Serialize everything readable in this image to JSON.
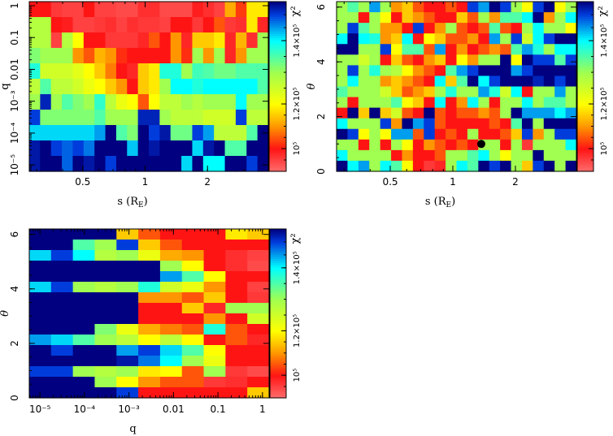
{
  "chart_data": [
    {
      "type": "heatmap",
      "title": "",
      "xlabel": {
        "main": "s (R",
        "sub": "E",
        "end": ")"
      },
      "ylabel": "q",
      "x_scale": "log",
      "y_scale": "log",
      "x_range": [
        0.276,
        3.93
      ],
      "y_range": [
        6.3e-06,
        1.34
      ],
      "x_ticks": [
        {
          "value": 0.5,
          "label": "0.5"
        },
        {
          "value": 1,
          "label": "1"
        },
        {
          "value": 2,
          "label": "2"
        }
      ],
      "y_ticks": [
        {
          "value": 1,
          "label": "1"
        },
        {
          "value": 0.1,
          "label": "0.1"
        },
        {
          "value": 0.01,
          "label": "0.01"
        },
        {
          "value": 0.001,
          "label": "10⁻³"
        },
        {
          "value": 0.0001,
          "label": "10⁻⁴"
        },
        {
          "value": 1e-05,
          "label": "10⁻⁵"
        }
      ],
      "colorbar": {
        "label": "χ²",
        "ticks": [
          {
            "value": 1.0,
            "label": "10⁵"
          },
          {
            "value": 1.2,
            "label": "1.2×10⁵"
          },
          {
            "value": 1.4,
            "label": "1.4×10⁵"
          }
        ]
      },
      "value_units": "chi2 in units of 1e5",
      "grid_rows_top_to_bottom": [
        [
          1.0,
          1.0,
          0.96,
          0.95,
          0.95,
          1.0,
          0.95,
          0.95,
          0.94,
          0.94,
          0.97,
          0.97,
          0.94,
          0.94,
          0.94,
          0.99,
          0.97,
          0.95,
          1.12,
          1.03,
          1.18,
          1.18
        ],
        [
          1.28,
          1.28,
          1.0,
          0.99,
          0.95,
          0.95,
          0.96,
          0.97,
          0.95,
          0.97,
          0.96,
          0.96,
          0.95,
          1.0,
          1.0,
          0.96,
          1.0,
          1.05,
          0.96,
          0.97,
          1.18,
          0.98
        ],
        [
          1.28,
          1.28,
          0.95,
          1.28,
          1.2,
          1.0,
          1.0,
          0.96,
          0.96,
          0.96,
          0.98,
          1.05,
          1.0,
          1.1,
          0.98,
          1.15,
          1.15,
          1.18,
          0.98,
          1.13,
          0.97,
          1.3
        ],
        [
          1.32,
          1.3,
          1.3,
          1.3,
          1.1,
          1.05,
          1.13,
          1.1,
          1.02,
          1.0,
          1.0,
          1.0,
          1.0,
          1.1,
          1.02,
          1.3,
          1.1,
          1.3,
          0.98,
          1.1,
          1.3,
          1.3
        ],
        [
          1.38,
          1.25,
          1.25,
          1.25,
          1.23,
          1.2,
          1.15,
          1.08,
          1.0,
          0.98,
          1.15,
          1.18,
          1.38,
          1.38,
          1.3,
          1.36,
          1.35,
          1.33,
          1.33,
          1.35,
          1.35,
          1.35
        ],
        [
          1.27,
          1.35,
          1.27,
          1.27,
          1.25,
          1.22,
          1.2,
          1.15,
          1.1,
          1.0,
          1.15,
          1.18,
          1.3,
          1.4,
          1.4,
          1.38,
          1.4,
          1.4,
          1.4,
          1.4,
          1.4,
          1.35
        ],
        [
          1.3,
          1.52,
          1.3,
          1.35,
          1.32,
          1.3,
          1.37,
          1.27,
          1.22,
          1.2,
          1.05,
          1.2,
          1.27,
          1.27,
          1.3,
          1.28,
          1.3,
          1.3,
          1.3,
          1.4,
          1.3,
          1.3
        ],
        [
          1.5,
          1.32,
          1.32,
          1.32,
          1.32,
          1.32,
          1.35,
          1.3,
          1.3,
          1.3,
          1.52,
          1.52,
          1.3,
          1.27,
          1.27,
          1.27,
          1.25,
          1.25,
          1.25,
          1.5,
          1.27,
          1.27
        ],
        [
          1.42,
          1.42,
          1.42,
          1.42,
          1.42,
          1.42,
          1.45,
          1.55,
          1.35,
          1.32,
          1.55,
          1.5,
          1.53,
          1.33,
          1.33,
          1.5,
          1.45,
          1.27,
          1.27,
          1.27,
          1.35,
          1.55
        ],
        [
          1.53,
          1.55,
          1.5,
          1.48,
          1.5,
          1.47,
          1.55,
          1.55,
          1.55,
          1.43,
          1.55,
          1.53,
          1.55,
          1.55,
          1.55,
          1.42,
          1.53,
          1.55,
          1.35,
          1.35,
          1.55,
          1.55
        ],
        [
          1.53,
          1.55,
          1.55,
          1.48,
          1.55,
          1.53,
          1.55,
          1.5,
          1.55,
          1.55,
          1.55,
          1.55,
          1.55,
          1.55,
          1.42,
          1.55,
          1.4,
          1.4,
          1.55,
          1.55,
          1.5,
          1.55
        ]
      ]
    },
    {
      "type": "heatmap",
      "title": "",
      "xlabel": {
        "main": "s (R",
        "sub": "E",
        "end": ")"
      },
      "ylabel": "θ",
      "x_scale": "log",
      "y_scale": "linear",
      "x_range": [
        0.276,
        3.93
      ],
      "y_range": [
        0,
        6.2
      ],
      "x_ticks": [
        {
          "value": 0.5,
          "label": "0.5"
        },
        {
          "value": 1,
          "label": "1"
        },
        {
          "value": 2,
          "label": "2"
        }
      ],
      "y_ticks": [
        {
          "value": 0,
          "label": "0"
        },
        {
          "value": 2,
          "label": "2"
        },
        {
          "value": 4,
          "label": "4"
        },
        {
          "value": 6,
          "label": "6"
        }
      ],
      "colorbar": {
        "label": "χ²",
        "ticks": [
          {
            "value": 1.0,
            "label": "10⁵"
          },
          {
            "value": 1.2,
            "label": "1.2×10⁵"
          },
          {
            "value": 1.4,
            "label": "1.4×10⁵"
          }
        ]
      },
      "marker": {
        "s": 1.37,
        "theta": 1.0,
        "color": "#000000"
      },
      "value_units": "chi2 in units of 1e5",
      "grid_rows_top_to_bottom": [
        [
          1.3,
          1.35,
          1.3,
          1.45,
          1.3,
          1.1,
          1.15,
          1.05,
          1.0,
          1.0,
          1.05,
          1.0,
          1.5,
          1.45,
          1.55,
          1.5,
          1.3,
          1.2,
          1.5,
          1.55,
          1.2,
          1.3
        ],
        [
          1.3,
          1.3,
          1.0,
          1.3,
          1.2,
          1.0,
          1.15,
          1.1,
          1.05,
          1.0,
          1.0,
          1.15,
          1.05,
          1.3,
          1.1,
          1.35,
          1.35,
          1.4,
          1.55,
          1.1,
          1.3,
          1.4
        ],
        [
          1.3,
          1.5,
          1.35,
          1.3,
          1.1,
          1.1,
          1.0,
          1.5,
          1.0,
          1.1,
          1.3,
          1.05,
          1.0,
          1.05,
          1.35,
          1.05,
          1.0,
          1.3,
          1.4,
          1.3,
          1.3,
          1.2
        ],
        [
          1.4,
          1.55,
          1.4,
          1.38,
          1.1,
          1.15,
          1.4,
          1.0,
          1.2,
          1.15,
          1.05,
          1.05,
          1.1,
          1.0,
          1.45,
          1.3,
          1.5,
          1.25,
          1.4,
          1.5,
          1.55,
          1.55
        ],
        [
          1.55,
          1.55,
          1.3,
          1.3,
          1.5,
          1.2,
          1.35,
          1.35,
          1.05,
          1.45,
          1.0,
          1.1,
          1.0,
          1.05,
          1.1,
          1.05,
          1.35,
          1.45,
          1.38,
          1.3,
          1.4,
          1.4
        ],
        [
          1.3,
          1.3,
          1.25,
          1.3,
          1.0,
          1.15,
          1.05,
          1.0,
          1.1,
          1.15,
          1.0,
          1.2,
          1.1,
          1.3,
          1.3,
          1.55,
          1.2,
          1.55,
          1.5,
          1.5,
          1.35,
          1.5
        ],
        [
          1.3,
          1.5,
          1.3,
          1.38,
          1.3,
          1.28,
          1.2,
          1.1,
          1.05,
          1.0,
          1.35,
          1.45,
          1.5,
          1.55,
          1.55,
          1.55,
          1.45,
          1.5,
          1.55,
          1.55,
          1.55,
          1.55
        ],
        [
          1.3,
          1.4,
          1.3,
          1.3,
          1.1,
          1.15,
          1.1,
          1.05,
          1.0,
          1.4,
          1.15,
          1.35,
          1.55,
          1.4,
          1.5,
          1.55,
          1.55,
          1.55,
          1.52,
          1.55,
          1.5,
          1.55
        ],
        [
          1.35,
          1.3,
          1.3,
          1.3,
          1.25,
          1.15,
          1.05,
          1.1,
          1.15,
          1.3,
          1.38,
          1.3,
          1.3,
          1.45,
          1.38,
          1.25,
          1.4,
          1.0,
          1.3,
          1.3,
          1.45,
          1.3
        ],
        [
          1.3,
          1.0,
          1.3,
          1.3,
          1.3,
          1.35,
          1.2,
          1.15,
          1.0,
          1.4,
          1.0,
          1.1,
          1.4,
          1.3,
          1.0,
          1.3,
          1.3,
          1.4,
          1.3,
          1.35,
          1.35,
          1.3
        ],
        [
          1.0,
          1.55,
          1.15,
          1.55,
          1.15,
          1.25,
          1.05,
          1.0,
          1.55,
          1.05,
          1.0,
          1.05,
          1.05,
          1.1,
          1.05,
          1.3,
          1.55,
          1.45,
          1.45,
          1.45,
          1.4,
          1.45
        ],
        [
          1.4,
          1.3,
          1.3,
          1.3,
          1.5,
          1.1,
          1.55,
          1.45,
          1.5,
          1.05,
          1.0,
          1.0,
          1.0,
          1.0,
          1.05,
          1.0,
          1.35,
          1.55,
          1.3,
          1.55,
          1.55,
          1.55
        ],
        [
          1.55,
          1.5,
          1.2,
          1.3,
          1.2,
          1.45,
          1.45,
          1.05,
          1.5,
          1.0,
          1.05,
          1.0,
          1.3,
          1.0,
          1.0,
          1.05,
          1.15,
          1.5,
          1.1,
          1.3,
          1.5,
          1.5
        ],
        [
          1.3,
          1.3,
          1.0,
          1.3,
          1.0,
          1.3,
          1.2,
          1.0,
          1.1,
          1.05,
          1.0,
          1.05,
          1.0,
          1.3,
          1.3,
          1.0,
          1.3,
          0.96,
          1.3,
          1.3,
          1.3,
          1.4
        ],
        [
          1.4,
          1.3,
          1.3,
          1.3,
          1.3,
          1.0,
          1.1,
          1.0,
          1.0,
          1.05,
          1.3,
          1.3,
          1.35,
          1.4,
          1.3,
          1.2,
          1.3,
          1.3,
          1.55,
          1.3,
          1.3,
          1.3
        ],
        [
          1.55,
          1.4,
          1.45,
          1.3,
          1.4,
          1.35,
          1.2,
          1.0,
          0.96,
          0.98,
          1.3,
          1.4,
          1.35,
          1.55,
          1.5,
          1.55,
          1.3,
          1.15,
          1.5,
          1.55,
          1.3,
          1.55
        ]
      ]
    },
    {
      "type": "heatmap",
      "title": "",
      "xlabel": {
        "main": "q",
        "sub": "",
        "end": ""
      },
      "ylabel": "θ",
      "x_scale": "log",
      "y_scale": "linear",
      "x_range": [
        5.75e-06,
        1.41
      ],
      "y_range": [
        0,
        6.2
      ],
      "x_ticks": [
        {
          "value": 1e-05,
          "label": "10⁻⁵"
        },
        {
          "value": 0.0001,
          "label": "10⁻⁴"
        },
        {
          "value": 0.001,
          "label": "10⁻³"
        },
        {
          "value": 0.01,
          "label": "0.01"
        },
        {
          "value": 0.1,
          "label": "0.1"
        },
        {
          "value": 1,
          "label": "1"
        }
      ],
      "y_ticks": [
        {
          "value": 0,
          "label": "0"
        },
        {
          "value": 2,
          "label": "2"
        },
        {
          "value": 4,
          "label": "4"
        },
        {
          "value": 6,
          "label": "6"
        }
      ],
      "colorbar": {
        "label": "χ²",
        "ticks": [
          {
            "value": 1.0,
            "label": "10⁵"
          },
          {
            "value": 1.2,
            "label": "1.2×10⁵"
          },
          {
            "value": 1.4,
            "label": "1.4×10⁵"
          }
        ]
      },
      "value_units": "chi2 in units of 1e5",
      "grid_rows_top_to_bottom": [
        [
          1.55,
          1.55,
          1.55,
          1.55,
          1.15,
          1.05,
          1.0,
          1.0,
          1.0,
          1.18,
          1.15
        ],
        [
          1.55,
          1.55,
          1.35,
          1.3,
          1.5,
          1.15,
          1.05,
          1.0,
          1.0,
          1.0,
          1.0
        ],
        [
          1.42,
          1.5,
          1.4,
          1.28,
          1.3,
          1.22,
          1.12,
          1.1,
          1.0,
          0.97,
          0.95
        ],
        [
          1.55,
          1.55,
          1.55,
          1.55,
          1.55,
          1.55,
          1.3,
          1.2,
          1.0,
          0.97,
          0.94
        ],
        [
          1.55,
          1.55,
          1.55,
          1.55,
          1.55,
          1.55,
          1.45,
          1.35,
          1.2,
          1.0,
          1.0
        ],
        [
          1.42,
          1.5,
          1.3,
          1.28,
          1.3,
          1.38,
          1.25,
          1.22,
          1.1,
          1.0,
          0.95
        ],
        [
          1.55,
          1.55,
          1.55,
          1.55,
          1.55,
          1.1,
          1.1,
          1.05,
          1.15,
          1.0,
          0.96
        ],
        [
          1.55,
          1.55,
          1.55,
          1.55,
          1.55,
          1.0,
          1.0,
          1.15,
          0.98,
          1.3,
          1.3
        ],
        [
          1.55,
          1.55,
          1.55,
          1.55,
          1.55,
          1.0,
          1.0,
          1.0,
          1.1,
          1.0,
          1.25
        ],
        [
          1.55,
          1.55,
          1.55,
          1.32,
          1.22,
          1.12,
          1.08,
          1.05,
          1.38,
          1.05,
          1.0
        ],
        [
          1.45,
          1.42,
          1.35,
          1.3,
          1.27,
          1.2,
          1.27,
          1.2,
          1.0,
          1.05,
          0.98
        ],
        [
          1.55,
          1.5,
          1.55,
          1.55,
          1.45,
          1.5,
          1.42,
          1.35,
          1.2,
          1.0,
          1.0
        ],
        [
          1.55,
          1.55,
          1.55,
          1.55,
          1.53,
          1.47,
          1.4,
          1.3,
          1.22,
          1.0,
          1.0
        ],
        [
          1.5,
          1.5,
          1.3,
          1.28,
          1.3,
          1.18,
          1.2,
          1.05,
          1.3,
          0.96,
          0.94
        ],
        [
          1.55,
          1.55,
          1.55,
          1.3,
          1.2,
          1.1,
          1.05,
          1.05,
          0.96,
          0.97,
          1.0
        ],
        [
          1.55,
          1.55,
          1.55,
          1.55,
          1.5,
          1.0,
          1.0,
          1.0,
          1.0,
          1.0,
          1.15
        ]
      ]
    }
  ]
}
